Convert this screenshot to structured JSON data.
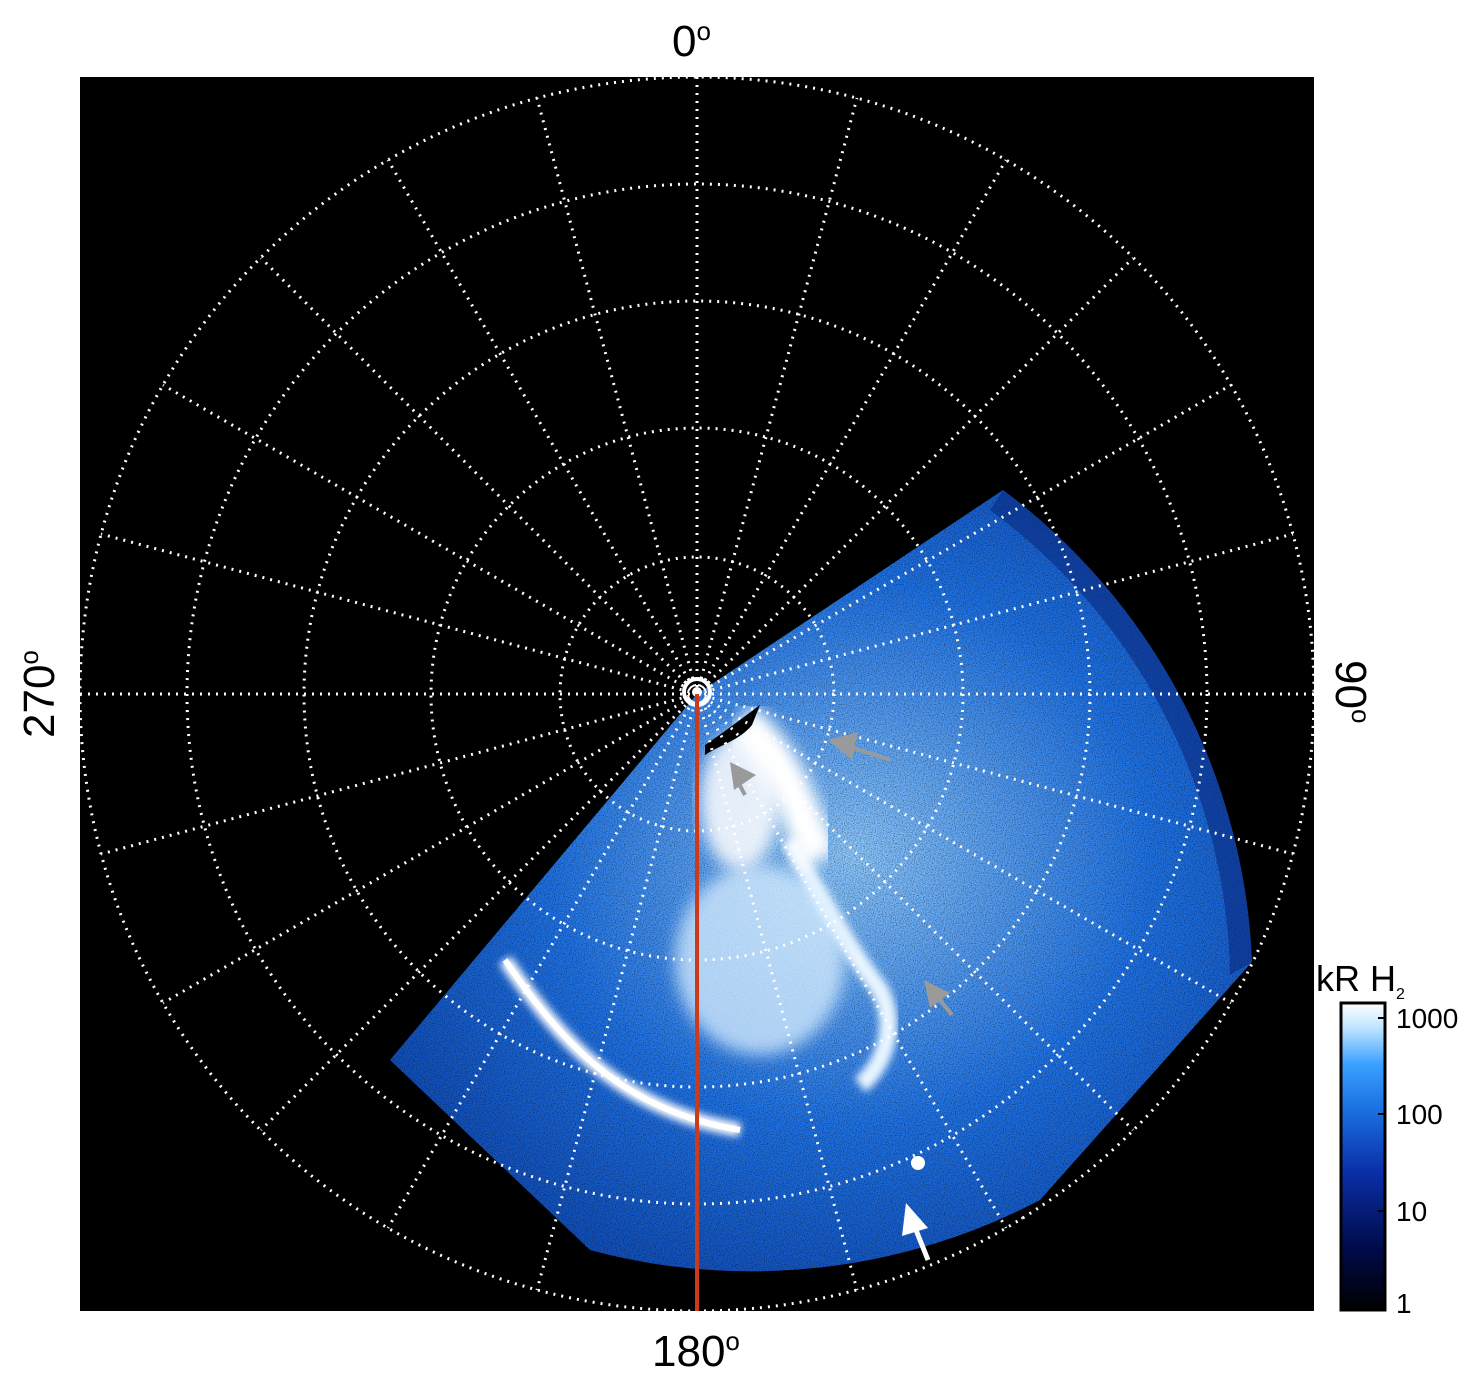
{
  "figure": {
    "axis_labels": {
      "top": "0",
      "right": "90",
      "bottom": "180",
      "left": "270",
      "degree_symbol": "o"
    },
    "colorbar": {
      "title_main": "kR H",
      "title_sub": "2",
      "ticks": [
        "1000",
        "100",
        "10",
        "1"
      ],
      "scale": "log",
      "colors": [
        "#000000",
        "#000a4a",
        "#0a2fa8",
        "#1a6fe0",
        "#3aa0ff",
        "#bfe4ff",
        "#ffffff"
      ]
    },
    "colors": {
      "background": "#000000",
      "grid": "#ffffff",
      "meridian_line": "#cc3a1a",
      "arrow_gray": "#9a9a9a",
      "arrow_white": "#ffffff"
    }
  }
}
